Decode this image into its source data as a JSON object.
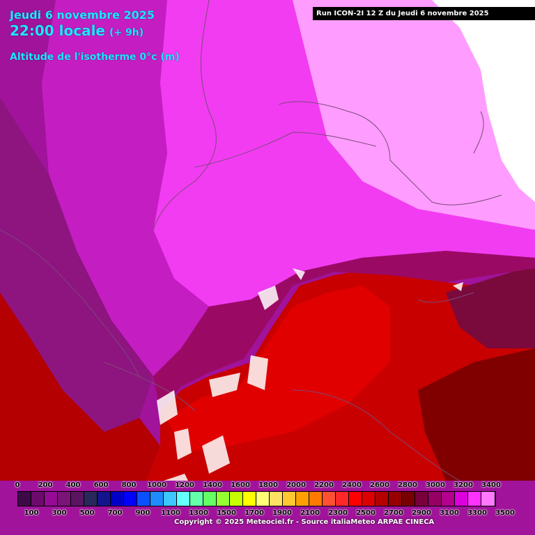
{
  "header": {
    "date": "Jeudi 6 novembre 2025",
    "time": "22:00 locale",
    "offset": "(+ 9h)",
    "parameter": "Altitude de l'isotherme 0°c (m)"
  },
  "run_banner": "Run ICON-2I 12 Z du Jeudi 6 novembre 2025",
  "legend": {
    "top_labels": [
      "0",
      "200",
      "400",
      "600",
      "800",
      "1000",
      "1200",
      "1400",
      "1600",
      "1800",
      "2000",
      "2200",
      "2400",
      "2600",
      "2800",
      "3000",
      "3200",
      "3400"
    ],
    "bottom_labels": [
      "100",
      "300",
      "500",
      "700",
      "900",
      "1100",
      "1300",
      "1500",
      "1700",
      "1900",
      "2100",
      "2300",
      "2500",
      "2700",
      "2900",
      "3100",
      "3300",
      "3500"
    ],
    "colors": [
      "#3c0a46",
      "#6e0a6e",
      "#960a96",
      "#7a1478",
      "#5a1460",
      "#28285a",
      "#14148c",
      "#0000c8",
      "#0000ff",
      "#0a50ff",
      "#1e8cff",
      "#3cc8ff",
      "#64ffff",
      "#64ffaa",
      "#64ff64",
      "#96ff32",
      "#c8ff00",
      "#ffff00",
      "#ffff78",
      "#ffe164",
      "#ffc832",
      "#ffa000",
      "#ff7800",
      "#ff5032",
      "#ff2828",
      "#ff0000",
      "#dc0000",
      "#b40000",
      "#960000",
      "#780000",
      "#78003c",
      "#960064",
      "#b4008c",
      "#dc00dc",
      "#ff32ff",
      "#ff78ff"
    ]
  },
  "copyright": "Copyright © 2025 Meteociel.fr - Source italiaMeteo ARPAE CINECA"
}
